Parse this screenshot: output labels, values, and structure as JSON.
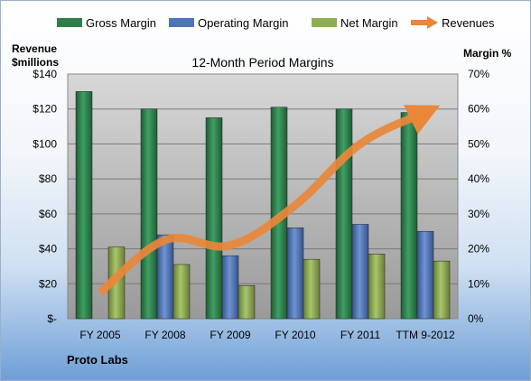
{
  "chart_data": {
    "type": "bar",
    "title": "12-Month Period Margins",
    "left_axis_label_line1": "Revenue",
    "left_axis_label_line2": "$millions",
    "right_axis_label": "Margin %",
    "footer": "Proto Labs",
    "categories": [
      "FY 2005",
      "FY 2008",
      "FY 2009",
      "FY 2010",
      "FY 2011",
      "TTM 9-2012"
    ],
    "left_ticks": [
      "$-",
      "$20",
      "$40",
      "$60",
      "$80",
      "$100",
      "$120",
      "$140"
    ],
    "right_ticks": [
      "0%",
      "10%",
      "20%",
      "30%",
      "40%",
      "50%",
      "60%",
      "70%"
    ],
    "ylim_left": [
      0,
      140
    ],
    "ylim_right": [
      0,
      70
    ],
    "legend_position": "top",
    "series": [
      {
        "name": "Gross Margin",
        "axis": "right",
        "kind": "bar",
        "color": "#2e7d4a",
        "values": [
          65,
          60,
          57.5,
          60.5,
          60,
          59
        ]
      },
      {
        "name": "Operating Margin",
        "axis": "right",
        "kind": "bar",
        "color": "#4e74b8",
        "values": [
          0,
          24,
          18,
          26,
          27,
          25
        ]
      },
      {
        "name": "Net Margin",
        "axis": "right",
        "kind": "bar",
        "color": "#8fae52",
        "values": [
          20.5,
          15.5,
          9.5,
          17,
          18.5,
          16.5
        ]
      },
      {
        "name": "Revenues",
        "axis": "left",
        "kind": "line",
        "color": "#e9873a",
        "values": [
          15,
          45,
          42,
          65,
          100,
          118
        ]
      }
    ],
    "grid": true
  }
}
